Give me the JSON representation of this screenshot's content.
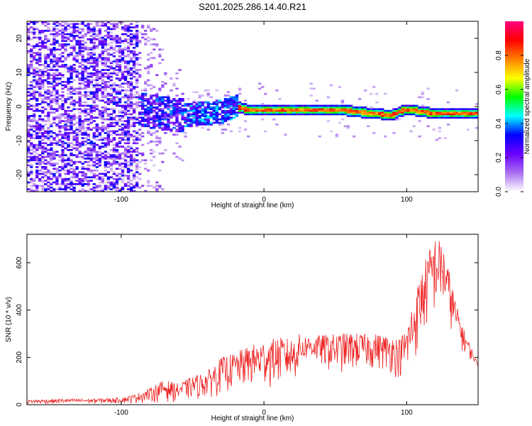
{
  "figure_title": "S201.2025.286.14.40.R21",
  "chart_data": [
    {
      "type": "heatmap",
      "title": "S201.2025.286.14.40.R21",
      "xlabel": "Height of straight line (km)",
      "ylabel": "Frequency (Hz)",
      "xlim": [
        -166,
        150
      ],
      "ylim": [
        -25,
        25
      ],
      "x_ticks": [
        -100,
        0,
        100
      ],
      "y_ticks": [
        -20,
        -10,
        0,
        10,
        20
      ],
      "colorbar": {
        "label": "Normalized spectral amplitude",
        "range": [
          0,
          1
        ],
        "ticks": [
          0.0,
          0.2,
          0.4,
          0.6,
          0.8
        ],
        "tick_labels": [
          "0.0",
          "0.2",
          "0.4",
          "0.6",
          "0.8"
        ],
        "colormap": [
          "#ffffff",
          "#a96ef0",
          "#6a00ff",
          "#0000ff",
          "#00ffff",
          "#00ff00",
          "#ffff00",
          "#ff7f00",
          "#ff0000",
          "#ff0080"
        ]
      },
      "ridge": {
        "x": [
          -85,
          -60,
          -40,
          -30,
          -20,
          -15,
          -10,
          0,
          20,
          40,
          55,
          65,
          75,
          80,
          85,
          90,
          95,
          100,
          105,
          110,
          120,
          130,
          140,
          150
        ],
        "frequency": [
          -1.0,
          -2.5,
          -2.0,
          -1.5,
          0.0,
          -0.5,
          -1.0,
          -1.0,
          -1.0,
          -1.0,
          -1.0,
          -1.5,
          -2.0,
          -2.0,
          -2.5,
          -2.5,
          -1.5,
          -1.0,
          -1.0,
          -1.5,
          -2.0,
          -2.0,
          -2.0,
          -2.0
        ]
      }
    },
    {
      "type": "line",
      "xlabel": "Height of straight line (km)",
      "ylabel": "SNR (10 * v/v)",
      "xlim": [
        -166,
        150
      ],
      "ylim": [
        0,
        720
      ],
      "x_ticks": [
        -100,
        0,
        100
      ],
      "y_ticks": [
        0,
        200,
        400,
        600
      ],
      "series": [
        {
          "name": "SNR",
          "color": "#ee2222",
          "envelope_x": [
            -166,
            -140,
            -120,
            -100,
            -90,
            -80,
            -70,
            -60,
            -50,
            -40,
            -30,
            -20,
            -10,
            0,
            10,
            20,
            25,
            30,
            40,
            50,
            60,
            70,
            80,
            90,
            95,
            100,
            105,
            110,
            115,
            120,
            125,
            130,
            135,
            140,
            150
          ],
          "envelope_max": [
            20,
            25,
            25,
            30,
            45,
            70,
            105,
            90,
            120,
            140,
            200,
            220,
            250,
            270,
            285,
            280,
            300,
            290,
            295,
            300,
            305,
            300,
            300,
            290,
            280,
            330,
            450,
            560,
            650,
            710,
            690,
            560,
            420,
            320,
            170
          ],
          "envelope_min": [
            2,
            3,
            3,
            4,
            5,
            5,
            8,
            10,
            15,
            20,
            40,
            50,
            60,
            60,
            70,
            80,
            120,
            180,
            150,
            120,
            130,
            140,
            140,
            120,
            100,
            100,
            150,
            240,
            300,
            360,
            380,
            320,
            260,
            210,
            160
          ]
        }
      ]
    }
  ]
}
